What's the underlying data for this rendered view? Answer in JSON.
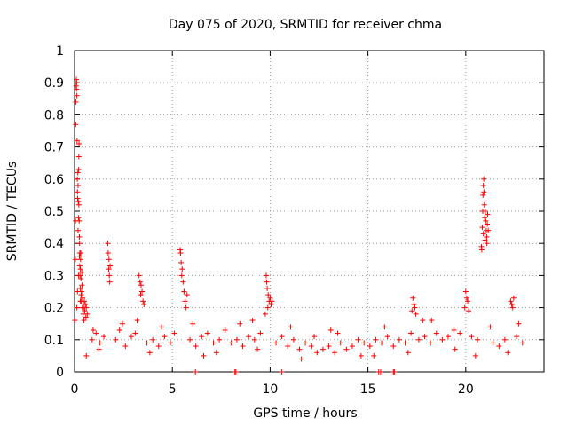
{
  "chart_data": {
    "type": "scatter",
    "title": "Day 075 of 2020, SRMTID for receiver chma",
    "xlabel": "GPS time / hours",
    "ylabel": "SRMTID / TECUs",
    "xlim": [
      0,
      24
    ],
    "ylim": [
      0,
      1
    ],
    "xticks": [
      0,
      5,
      10,
      15,
      20
    ],
    "xtick_labels": [
      "0",
      "5",
      "10",
      "15",
      "20"
    ],
    "yticks": [
      0,
      0.1,
      0.2,
      0.3,
      0.4,
      0.5,
      0.6,
      0.7,
      0.8,
      0.9,
      1
    ],
    "ytick_labels": [
      "0",
      "0.1",
      "0.2",
      "0.3",
      "0.4",
      "0.5",
      "0.6",
      "0.7",
      "0.8",
      "0.9",
      "1"
    ],
    "grid": true,
    "marker": "+",
    "marker_color": "#ff0000",
    "series": [
      {
        "name": "SRMTID",
        "points": [
          [
            0.02,
            0.16
          ],
          [
            0.04,
            0.35
          ],
          [
            0.05,
            0.47
          ],
          [
            0.06,
            0.77
          ],
          [
            0.07,
            0.84
          ],
          [
            0.08,
            0.89
          ],
          [
            0.09,
            0.91
          ],
          [
            0.1,
            0.88
          ],
          [
            0.11,
            0.9
          ],
          [
            0.12,
            0.86
          ],
          [
            0.13,
            0.72
          ],
          [
            0.14,
            0.6
          ],
          [
            0.15,
            0.56
          ],
          [
            0.16,
            0.54
          ],
          [
            0.17,
            0.62
          ],
          [
            0.18,
            0.58
          ],
          [
            0.19,
            0.53
          ],
          [
            0.2,
            0.48
          ],
          [
            0.21,
            0.63
          ],
          [
            0.22,
            0.67
          ],
          [
            0.23,
            0.71
          ],
          [
            0.24,
            0.47
          ],
          [
            0.25,
            0.42
          ],
          [
            0.26,
            0.4
          ],
          [
            0.27,
            0.33
          ],
          [
            0.28,
            0.3
          ],
          [
            0.29,
            0.26
          ],
          [
            0.3,
            0.32
          ],
          [
            0.31,
            0.35
          ],
          [
            0.32,
            0.37
          ],
          [
            0.33,
            0.29
          ],
          [
            0.34,
            0.24
          ],
          [
            0.35,
            0.22
          ],
          [
            0.36,
            0.25
          ],
          [
            0.37,
            0.31
          ],
          [
            0.38,
            0.27
          ],
          [
            0.4,
            0.2
          ],
          [
            0.42,
            0.23
          ],
          [
            0.44,
            0.18
          ],
          [
            0.46,
            0.2
          ],
          [
            0.48,
            0.16
          ],
          [
            0.5,
            0.22
          ],
          [
            0.52,
            0.19
          ],
          [
            0.55,
            0.21
          ],
          [
            0.58,
            0.17
          ],
          [
            0.6,
            0.2
          ],
          [
            0.65,
            0.18
          ],
          [
            0.12,
            0.2
          ],
          [
            0.15,
            0.25
          ],
          [
            0.2,
            0.3
          ],
          [
            0.25,
            0.36
          ],
          [
            0.3,
            0.22
          ],
          [
            0.18,
            0.44
          ],
          [
            0.22,
            0.52
          ],
          [
            0.27,
            0.37
          ],
          [
            1.7,
            0.4
          ],
          [
            1.72,
            0.37
          ],
          [
            1.75,
            0.32
          ],
          [
            1.78,
            0.3
          ],
          [
            1.8,
            0.28
          ],
          [
            1.76,
            0.35
          ],
          [
            1.82,
            0.33
          ],
          [
            3.3,
            0.3
          ],
          [
            3.35,
            0.28
          ],
          [
            3.4,
            0.27
          ],
          [
            3.45,
            0.25
          ],
          [
            3.5,
            0.22
          ],
          [
            3.38,
            0.24
          ],
          [
            3.55,
            0.21
          ],
          [
            5.4,
            0.38
          ],
          [
            5.42,
            0.37
          ],
          [
            5.45,
            0.34
          ],
          [
            5.5,
            0.32
          ],
          [
            5.48,
            0.3
          ],
          [
            5.55,
            0.28
          ],
          [
            5.6,
            0.25
          ],
          [
            5.65,
            0.22
          ],
          [
            5.7,
            0.2
          ],
          [
            5.75,
            0.24
          ],
          [
            9.8,
            0.3
          ],
          [
            9.82,
            0.28
          ],
          [
            9.85,
            0.26
          ],
          [
            9.9,
            0.24
          ],
          [
            9.95,
            0.22
          ],
          [
            10.0,
            0.23
          ],
          [
            10.05,
            0.21
          ],
          [
            10.1,
            0.22
          ],
          [
            9.88,
            0.2
          ],
          [
            9.75,
            0.18
          ],
          [
            17.3,
            0.23
          ],
          [
            17.35,
            0.21
          ],
          [
            17.4,
            0.2
          ],
          [
            17.25,
            0.19
          ],
          [
            17.45,
            0.18
          ],
          [
            20.0,
            0.25
          ],
          [
            20.05,
            0.23
          ],
          [
            20.1,
            0.22
          ],
          [
            19.95,
            0.2
          ],
          [
            20.15,
            0.19
          ],
          [
            20.8,
            0.39
          ],
          [
            20.82,
            0.38
          ],
          [
            20.85,
            0.45
          ],
          [
            20.87,
            0.5
          ],
          [
            20.88,
            0.55
          ],
          [
            20.9,
            0.58
          ],
          [
            20.92,
            0.6
          ],
          [
            20.93,
            0.56
          ],
          [
            20.95,
            0.52
          ],
          [
            20.97,
            0.48
          ],
          [
            21.0,
            0.5
          ],
          [
            21.02,
            0.47
          ],
          [
            21.05,
            0.44
          ],
          [
            21.07,
            0.42
          ],
          [
            21.1,
            0.46
          ],
          [
            21.12,
            0.49
          ],
          [
            21.15,
            0.44
          ],
          [
            20.98,
            0.41
          ],
          [
            21.08,
            0.4
          ],
          [
            20.9,
            0.43
          ],
          [
            22.3,
            0.22
          ],
          [
            22.35,
            0.21
          ],
          [
            22.4,
            0.2
          ],
          [
            22.45,
            0.23
          ],
          [
            0.9,
            0.1
          ],
          [
            1.1,
            0.12
          ],
          [
            1.3,
            0.09
          ],
          [
            1.5,
            0.11
          ],
          [
            2.1,
            0.1
          ],
          [
            2.3,
            0.13
          ],
          [
            2.6,
            0.08
          ],
          [
            2.9,
            0.11
          ],
          [
            3.1,
            0.12
          ],
          [
            3.7,
            0.09
          ],
          [
            4.0,
            0.1
          ],
          [
            4.3,
            0.08
          ],
          [
            4.6,
            0.11
          ],
          [
            4.9,
            0.09
          ],
          [
            5.1,
            0.12
          ],
          [
            5.9,
            0.1
          ],
          [
            6.2,
            0.08
          ],
          [
            6.5,
            0.11
          ],
          [
            6.8,
            0.12
          ],
          [
            7.1,
            0.09
          ],
          [
            7.4,
            0.1
          ],
          [
            7.7,
            0.13
          ],
          [
            8.0,
            0.09
          ],
          [
            8.3,
            0.1
          ],
          [
            8.6,
            0.08
          ],
          [
            8.9,
            0.11
          ],
          [
            9.2,
            0.1
          ],
          [
            9.5,
            0.12
          ],
          [
            10.3,
            0.09
          ],
          [
            10.6,
            0.11
          ],
          [
            10.9,
            0.08
          ],
          [
            11.2,
            0.1
          ],
          [
            11.5,
            0.07
          ],
          [
            11.8,
            0.09
          ],
          [
            12.1,
            0.08
          ],
          [
            12.4,
            0.06
          ],
          [
            12.7,
            0.07
          ],
          [
            13.0,
            0.08
          ],
          [
            13.3,
            0.06
          ],
          [
            13.6,
            0.09
          ],
          [
            13.9,
            0.07
          ],
          [
            14.2,
            0.08
          ],
          [
            14.5,
            0.1
          ],
          [
            14.8,
            0.09
          ],
          [
            15.1,
            0.08
          ],
          [
            15.4,
            0.1
          ],
          [
            15.7,
            0.09
          ],
          [
            16.0,
            0.11
          ],
          [
            16.3,
            0.08
          ],
          [
            16.6,
            0.1
          ],
          [
            16.9,
            0.09
          ],
          [
            17.2,
            0.12
          ],
          [
            17.6,
            0.1
          ],
          [
            17.9,
            0.11
          ],
          [
            18.2,
            0.09
          ],
          [
            18.5,
            0.12
          ],
          [
            18.8,
            0.1
          ],
          [
            19.1,
            0.11
          ],
          [
            19.4,
            0.13
          ],
          [
            19.7,
            0.12
          ],
          [
            20.3,
            0.11
          ],
          [
            20.6,
            0.1
          ],
          [
            21.4,
            0.09
          ],
          [
            21.7,
            0.08
          ],
          [
            22.0,
            0.1
          ],
          [
            22.6,
            0.11
          ],
          [
            22.9,
            0.09
          ],
          [
            0.95,
            0.13
          ],
          [
            1.25,
            0.07
          ],
          [
            2.45,
            0.15
          ],
          [
            3.85,
            0.06
          ],
          [
            4.45,
            0.14
          ],
          [
            6.05,
            0.15
          ],
          [
            7.25,
            0.06
          ],
          [
            8.45,
            0.15
          ],
          [
            9.35,
            0.07
          ],
          [
            11.05,
            0.14
          ],
          [
            12.25,
            0.11
          ],
          [
            13.45,
            0.12
          ],
          [
            14.65,
            0.05
          ],
          [
            15.85,
            0.14
          ],
          [
            17.05,
            0.06
          ],
          [
            18.25,
            0.16
          ],
          [
            19.45,
            0.07
          ],
          [
            21.25,
            0.14
          ],
          [
            22.15,
            0.06
          ],
          [
            0.6,
            0.05
          ],
          [
            3.2,
            0.16
          ],
          [
            6.6,
            0.05
          ],
          [
            9.1,
            0.16
          ],
          [
            11.6,
            0.04
          ],
          [
            13.1,
            0.13
          ],
          [
            15.3,
            0.05
          ],
          [
            17.8,
            0.16
          ],
          [
            20.5,
            0.05
          ],
          [
            22.7,
            0.15
          ],
          [
            6.18,
            0.0
          ],
          [
            8.2,
            0.0
          ],
          [
            8.25,
            0.0
          ],
          [
            10.6,
            0.0
          ],
          [
            15.55,
            0.0
          ],
          [
            15.65,
            0.0
          ],
          [
            16.3,
            0.0
          ],
          [
            16.35,
            0.0
          ]
        ]
      }
    ]
  }
}
